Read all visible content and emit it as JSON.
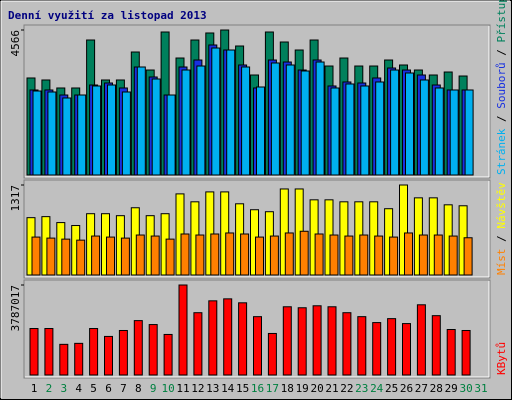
{
  "title": "Denní využití za listopad 2013",
  "legend_separator": " / ",
  "categories": [
    "1",
    "2",
    "3",
    "4",
    "5",
    "6",
    "7",
    "8",
    "9",
    "10",
    "11",
    "12",
    "13",
    "14",
    "15",
    "16",
    "17",
    "18",
    "19",
    "20",
    "21",
    "22",
    "23",
    "24",
    "25",
    "26",
    "27",
    "28",
    "29",
    "30",
    "31"
  ],
  "category_colors": [
    "#000000",
    "#008040",
    "#008040",
    "#000000",
    "#000000",
    "#000000",
    "#000000",
    "#000000",
    "#008040",
    "#008040",
    "#000000",
    "#000000",
    "#000000",
    "#000000",
    "#000000",
    "#008040",
    "#008040",
    "#000000",
    "#000000",
    "#000000",
    "#000000",
    "#000000",
    "#008040",
    "#008040",
    "#000000",
    "#000000",
    "#000000",
    "#000000",
    "#000000",
    "#008040",
    "#008040"
  ],
  "chart_data": [
    {
      "type": "bar",
      "ylim": [
        0,
        4566
      ],
      "yticks": [
        4566
      ],
      "series": [
        {
          "name": "Přístupů",
          "color": "#00805c",
          "values": [
            3055,
            2992,
            2740,
            2740,
            4251,
            2992,
            2992,
            3873,
            3306,
            4503,
            3684,
            4251,
            4472,
            4566,
            4062,
            3149,
            4503,
            4188,
            3936,
            4251,
            3432,
            3684,
            3432,
            3432,
            3621,
            3464,
            3306,
            3149,
            3243,
            3117,
            null
          ]
        },
        {
          "name": "Souborů",
          "color": "#1830e0",
          "values": [
            2677,
            2677,
            2519,
            2519,
            2834,
            2897,
            2740,
            3401,
            3086,
            2519,
            3401,
            3621,
            4094,
            3936,
            3464,
            2740,
            3621,
            3558,
            3306,
            3621,
            2803,
            2929,
            2897,
            3055,
            3369,
            3306,
            3149,
            2834,
            2677,
            2677,
            null
          ]
        },
        {
          "name": "Stránek",
          "color": "#00b0f0",
          "values": [
            2645,
            2614,
            2425,
            2519,
            2803,
            2834,
            2614,
            3401,
            3023,
            2519,
            3306,
            3432,
            3999,
            3936,
            3401,
            2771,
            3527,
            3464,
            3275,
            3558,
            2740,
            2866,
            2803,
            2929,
            3306,
            3212,
            2992,
            2740,
            2677,
            2677,
            null
          ]
        }
      ]
    },
    {
      "type": "bar",
      "ylim": [
        0,
        1317
      ],
      "yticks": [
        1317
      ],
      "series": [
        {
          "name": "Návštěv",
          "color": "#ffff00",
          "values": [
            839,
            854,
            767,
            724,
            897,
            897,
            868,
            984,
            868,
            897,
            1187,
            1071,
            1216,
            1216,
            1042,
            955,
            926,
            1259,
            1259,
            1100,
            1100,
            1071,
            1071,
            1071,
            970,
            1317,
            1129,
            1129,
            1027,
            1013,
            null
          ]
        },
        {
          "name": "Míst",
          "color": "#ff8000",
          "values": [
            555,
            540,
            525,
            510,
            570,
            555,
            540,
            585,
            570,
            525,
            600,
            585,
            600,
            615,
            600,
            555,
            570,
            615,
            640,
            600,
            585,
            570,
            585,
            570,
            555,
            615,
            585,
            585,
            570,
            545,
            null
          ]
        }
      ]
    },
    {
      "type": "bar",
      "ylim": [
        0,
        3787017
      ],
      "yticks": [
        3787017
      ],
      "series": [
        {
          "name": "KBytů",
          "color": "#ff0000",
          "values": [
            1955900,
            1955900,
            1290000,
            1331700,
            1955900,
            1623000,
            1872700,
            2288800,
            2122400,
            1706200,
            3787017,
            2621700,
            3121100,
            3204400,
            3037900,
            2455300,
            1747800,
            2871400,
            2829800,
            2913100,
            2871400,
            2621700,
            2455300,
            2205600,
            2372100,
            2164000,
            2954700,
            2496900,
            1914300,
            1872700,
            null
          ]
        }
      ]
    }
  ]
}
